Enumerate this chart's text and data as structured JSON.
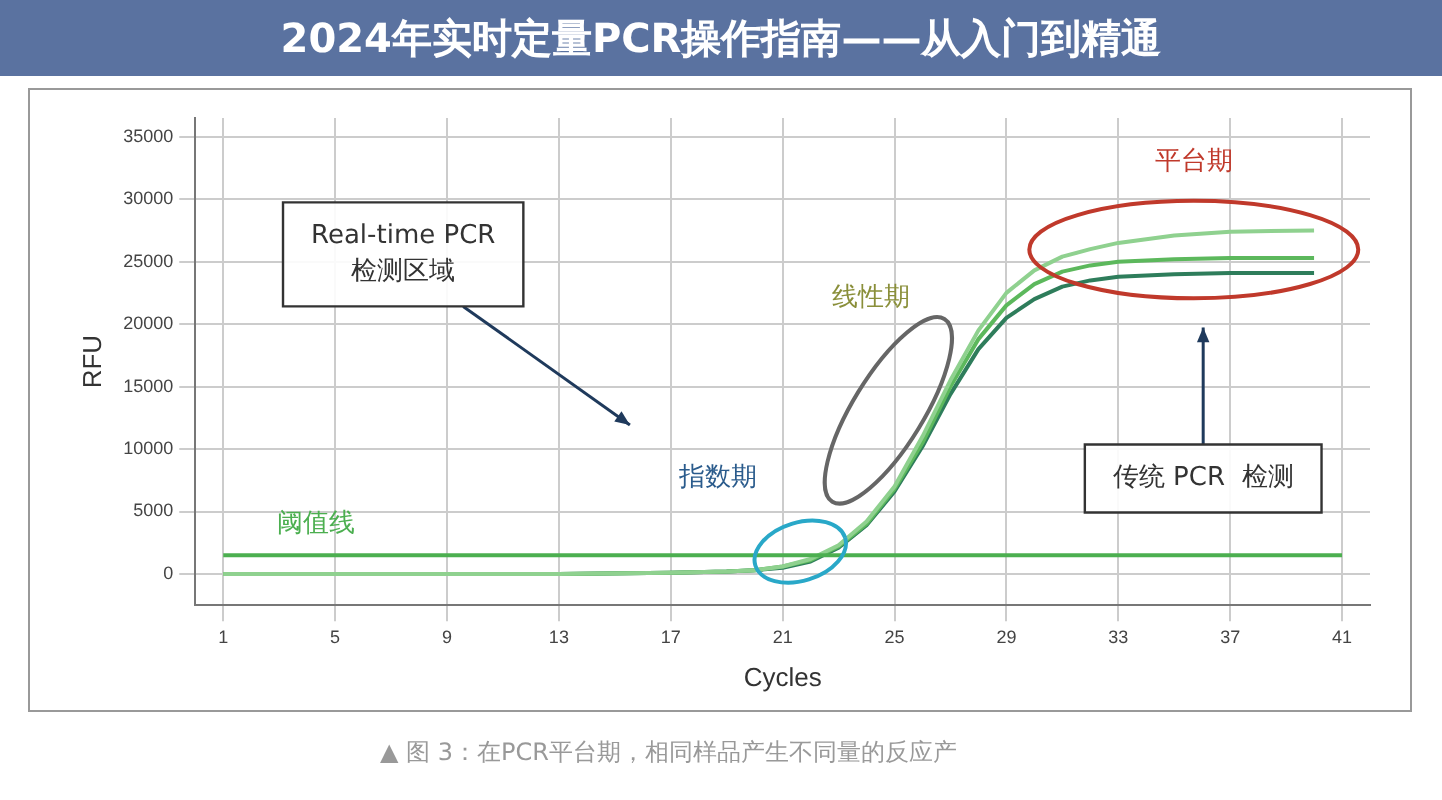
{
  "chart_data": {
    "type": "line",
    "title": "2024年实时定量PCR操作指南——从入门到精通",
    "xlabel": "Cycles",
    "ylabel": "RFU",
    "xlim": [
      0,
      42
    ],
    "xticks": [
      1,
      5,
      9,
      13,
      17,
      21,
      25,
      29,
      33,
      37,
      41
    ],
    "ylim": [
      -2500,
      36500
    ],
    "yticks": [
      0,
      5000,
      10000,
      15000,
      20000,
      25000,
      30000,
      35000
    ],
    "grid": true,
    "legend": false,
    "marker": "none",
    "line_style": "solid",
    "x": [
      1,
      5,
      9,
      13,
      17,
      19,
      20,
      21,
      22,
      23,
      24,
      25,
      26,
      27,
      28,
      29,
      30,
      31,
      32,
      33,
      35,
      37,
      40
    ],
    "series": [
      {
        "color": "#8fd18f",
        "values": [
          0,
          0,
          0,
          0,
          100,
          200,
          300,
          600,
          1200,
          2300,
          4200,
          7000,
          11000,
          15500,
          19500,
          22500,
          24300,
          25400,
          26000,
          26500,
          27100,
          27400,
          27500
        ]
      },
      {
        "color": "#5cb85c",
        "values": [
          0,
          0,
          0,
          0,
          100,
          200,
          300,
          600,
          1100,
          2200,
          4000,
          6800,
          10500,
          15000,
          18800,
          21500,
          23200,
          24200,
          24700,
          25000,
          25200,
          25300,
          25300
        ]
      },
      {
        "color": "#2e7d5b",
        "values": [
          null,
          null,
          null,
          0,
          100,
          200,
          300,
          500,
          1000,
          2100,
          3900,
          6600,
          10200,
          14400,
          18000,
          20500,
          22000,
          23000,
          23500,
          23800,
          24000,
          24100,
          24100
        ]
      }
    ],
    "ref_lines": [
      {
        "axis": "y",
        "value": 1500,
        "label": "阈值线",
        "color": "#4caf50"
      }
    ],
    "annotations": [
      "平台期",
      "线性期",
      "指数期",
      "Real-time PCR\n检测区域",
      "传统 PCR  检测",
      "▲ 图 3：在PCR平台期，相同样品产生不同量的反应产"
    ]
  }
}
